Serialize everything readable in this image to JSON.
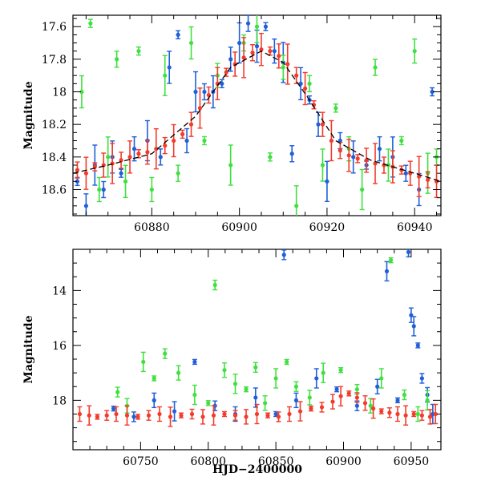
{
  "colors": {
    "blue": "#1f5fd8",
    "green": "#3fe03f",
    "red": "#f23b2b",
    "model": "#000000"
  },
  "chart_data": [
    {
      "type": "scatter",
      "panel": "top",
      "title": "",
      "xlabel": "",
      "ylabel": "Magnitude",
      "xlim": [
        60862,
        60946
      ],
      "ylim": [
        18.76,
        17.53
      ],
      "y_inverted": true,
      "xticks": [
        60880,
        60900,
        60920,
        60940
      ],
      "yticks": [
        17.6,
        17.8,
        18,
        18.2,
        18.4,
        18.6
      ],
      "ytick_labels": [
        "17.6",
        "17.8",
        "18",
        "18.2",
        "18.4",
        "18.6"
      ],
      "model_curve": {
        "x": [
          60862,
          60870,
          60880,
          60890,
          60898,
          60905,
          60910,
          60916,
          60922,
          60930,
          60940,
          60946
        ],
        "y": [
          18.5,
          18.45,
          18.38,
          18.15,
          17.85,
          17.75,
          17.82,
          18.05,
          18.3,
          18.42,
          18.5,
          18.55
        ]
      },
      "series": [
        {
          "color": "blue",
          "x": [
            60863,
            60865,
            60867,
            60869,
            60871,
            60873,
            60876,
            60879,
            60882,
            60884,
            60886,
            60888,
            60890,
            60892,
            60894,
            60896,
            60898,
            60900,
            60902,
            60904,
            60906,
            60908,
            60910,
            60912,
            60914,
            60916,
            60918,
            60920,
            60923,
            60926,
            60929,
            60932,
            60935,
            60938,
            60941,
            60944
          ],
          "y": [
            18.55,
            18.7,
            18.45,
            18.6,
            18.4,
            18.5,
            18.35,
            18.3,
            18.4,
            17.85,
            17.65,
            18.3,
            18.0,
            18.0,
            18.0,
            17.95,
            17.8,
            17.7,
            17.58,
            17.72,
            17.6,
            17.75,
            17.82,
            18.38,
            17.95,
            18.05,
            18.2,
            18.55,
            18.3,
            18.4,
            18.45,
            18.35,
            18.4,
            18.5,
            18.6,
            18.0
          ]
        },
        {
          "color": "green",
          "x": [
            60864,
            60866,
            60868,
            60870,
            60872,
            60874,
            60877,
            60880,
            60883,
            60886,
            60889,
            60892,
            60895,
            60898,
            60901,
            60904,
            60907,
            60910,
            60913,
            60916,
            60919,
            60922,
            60925,
            60928,
            60931,
            60934,
            60937,
            60940,
            60943,
            60945
          ],
          "y": [
            18.0,
            17.58,
            18.6,
            18.4,
            17.8,
            18.55,
            17.75,
            18.6,
            17.9,
            18.5,
            17.7,
            18.3,
            17.9,
            18.45,
            17.7,
            17.6,
            18.4,
            17.85,
            18.7,
            17.95,
            18.45,
            18.1,
            18.35,
            18.6,
            17.85,
            18.45,
            18.3,
            17.75,
            18.5,
            18.4
          ]
        },
        {
          "color": "red",
          "x": [
            60863,
            60865,
            60867,
            60869,
            60871,
            60873,
            60875,
            60877,
            60879,
            60881,
            60883,
            60885,
            60887,
            60889,
            60891,
            60893,
            60895,
            60897,
            60899,
            60901,
            60903,
            60905,
            60907,
            60909,
            60911,
            60913,
            60915,
            60917,
            60919,
            60921,
            60923,
            60925,
            60927,
            60929,
            60931,
            60933,
            60935,
            60937,
            60939,
            60941,
            60943,
            60945
          ],
          "y": [
            18.48,
            18.5,
            18.46,
            18.45,
            18.44,
            18.42,
            18.4,
            18.38,
            18.37,
            18.35,
            18.33,
            18.3,
            18.26,
            18.2,
            18.1,
            18.02,
            17.95,
            17.88,
            17.83,
            17.79,
            17.76,
            17.74,
            17.75,
            17.78,
            17.83,
            17.9,
            17.98,
            18.08,
            18.2,
            18.3,
            18.36,
            18.39,
            18.41,
            18.42,
            18.44,
            18.45,
            18.46,
            18.48,
            18.5,
            18.52,
            18.54,
            18.55
          ]
        }
      ]
    },
    {
      "type": "scatter",
      "panel": "bottom",
      "title": "",
      "xlabel": "HJD−2400000",
      "ylabel": "Magnitude",
      "xlim": [
        60700,
        60972
      ],
      "ylim": [
        19.8,
        12.5
      ],
      "y_inverted": true,
      "xticks": [
        60750,
        60800,
        60850,
        60900,
        60950
      ],
      "yticks": [
        14,
        16,
        18
      ],
      "ytick_labels": [
        "14",
        "16",
        "18"
      ],
      "series": [
        {
          "color": "blue",
          "x": [
            60730,
            60745,
            60760,
            60775,
            60790,
            60805,
            60820,
            60835,
            60850,
            60856,
            60865,
            60880,
            60895,
            60910,
            60925,
            60932,
            60940,
            60948,
            60950,
            60952,
            60955,
            60958,
            60962,
            60966
          ],
          "y": [
            18.3,
            18.6,
            18.0,
            18.4,
            16.6,
            18.2,
            18.5,
            17.9,
            18.5,
            12.7,
            18.0,
            17.2,
            17.6,
            18.2,
            17.5,
            13.3,
            18.0,
            12.6,
            14.9,
            15.3,
            16.0,
            17.2,
            17.8,
            18.5
          ]
        },
        {
          "color": "green",
          "x": [
            60733,
            60740,
            60752,
            60760,
            60768,
            60778,
            60790,
            60800,
            60805,
            60812,
            60820,
            60828,
            60835,
            60842,
            60850,
            60858,
            60865,
            60875,
            60885,
            60898,
            60910,
            60920,
            60928,
            60935,
            60945,
            60955,
            60962
          ],
          "y": [
            17.7,
            18.2,
            16.6,
            17.2,
            16.3,
            17.0,
            17.8,
            18.1,
            13.8,
            16.9,
            17.4,
            17.6,
            16.8,
            18.1,
            17.2,
            16.6,
            17.5,
            17.9,
            17.0,
            16.9,
            17.6,
            18.2,
            17.2,
            12.9,
            17.8,
            18.5,
            18.0
          ]
        },
        {
          "color": "red",
          "x": [
            60705,
            60712,
            60718,
            60725,
            60732,
            60740,
            60748,
            60756,
            60764,
            60772,
            60780,
            60788,
            60796,
            60804,
            60812,
            60820,
            60828,
            60836,
            60844,
            60852,
            60860,
            60868,
            60876,
            60884,
            60892,
            60898,
            60904,
            60910,
            60916,
            60922,
            60928,
            60934,
            60940,
            60946,
            60952,
            60958,
            60964,
            60968
          ],
          "y": [
            18.5,
            18.55,
            18.6,
            18.55,
            18.5,
            18.55,
            18.6,
            18.55,
            18.5,
            18.6,
            18.55,
            18.5,
            18.6,
            18.55,
            18.5,
            18.55,
            18.6,
            18.5,
            18.55,
            18.6,
            18.5,
            18.4,
            18.3,
            18.25,
            18.05,
            17.85,
            17.75,
            17.9,
            18.1,
            18.3,
            18.4,
            18.45,
            18.5,
            18.55,
            18.5,
            18.55,
            18.6,
            18.5
          ]
        }
      ]
    }
  ]
}
